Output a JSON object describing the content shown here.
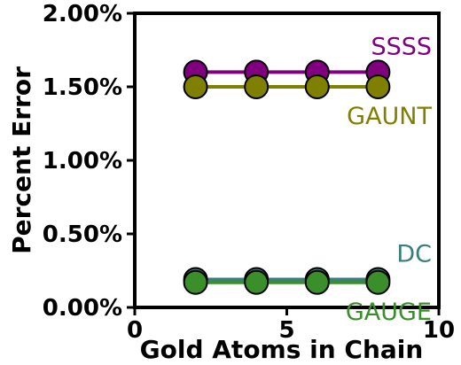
{
  "chart_data": {
    "type": "line",
    "title": "",
    "xlabel": "Gold Atoms in Chain",
    "ylabel": "Percent Error",
    "xlim": [
      0,
      10
    ],
    "ylim": [
      0,
      2.0
    ],
    "x_ticks": [
      "0",
      "5",
      "10"
    ],
    "y_ticks": [
      "0.00%",
      "0.50%",
      "1.00%",
      "1.50%",
      "2.00%"
    ],
    "grid": false,
    "legend": "inline labels next to each series",
    "x": [
      2,
      4,
      6,
      8
    ],
    "series": [
      {
        "name": "SSSS",
        "values": [
          1.6,
          1.6,
          1.6,
          1.6
        ],
        "color": "#800080",
        "label_placement": "above"
      },
      {
        "name": "GAUNT",
        "values": [
          1.5,
          1.5,
          1.5,
          1.5
        ],
        "color": "#808000",
        "label_placement": "below"
      },
      {
        "name": "DC",
        "values": [
          0.19,
          0.19,
          0.19,
          0.19
        ],
        "color": "#3a7d7d",
        "label_placement": "above"
      },
      {
        "name": "GAUGE",
        "values": [
          0.17,
          0.17,
          0.17,
          0.17
        ],
        "color": "#3b8f2a",
        "label_placement": "below"
      }
    ]
  }
}
